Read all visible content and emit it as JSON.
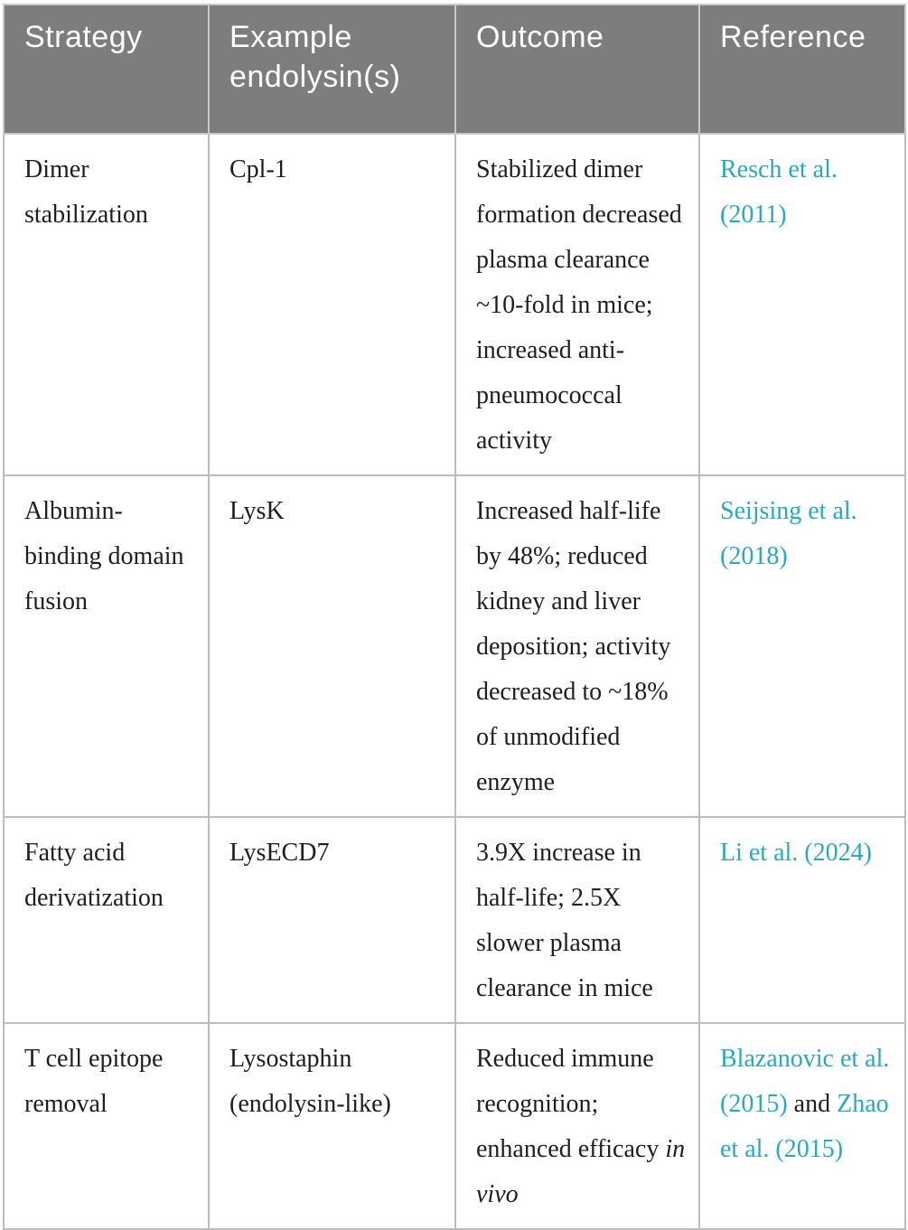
{
  "colors": {
    "header_bg": "#7d7d7d",
    "header_text": "#ffffff",
    "body_text": "#1e1e1e",
    "link": "#27a9bf",
    "border": "#bcbcbc"
  },
  "table": {
    "columns": [
      {
        "label": "Strategy"
      },
      {
        "label": "Example endolysin(s)"
      },
      {
        "label": "Outcome"
      },
      {
        "label": "Reference"
      }
    ],
    "rows": [
      {
        "strategy": "Dimer stabilization",
        "example": "Cpl-1",
        "outcome": [
          {
            "text": "Stabilized dimer formation decreased plasma clearance ~10-fold in mice; increased anti-pneumococcal activity",
            "style": "plain"
          }
        ],
        "reference": [
          {
            "text": "Resch et al. (2011)",
            "style": "link"
          }
        ]
      },
      {
        "strategy": "Albumin-binding domain fusion",
        "example": "LysK",
        "outcome": [
          {
            "text": "Increased half-life by 48%; reduced kidney and liver deposition; activity decreased to ~18% of unmodified enzyme",
            "style": "plain"
          }
        ],
        "reference": [
          {
            "text": "Seijsing et al. (2018)",
            "style": "link"
          }
        ]
      },
      {
        "strategy": "Fatty acid derivatization",
        "example": "LysECD7",
        "outcome": [
          {
            "text": "3.9X increase in half-life; 2.5X slower plasma clearance in mice",
            "style": "plain"
          }
        ],
        "reference": [
          {
            "text": "Li et al. (2024)",
            "style": "link"
          }
        ]
      },
      {
        "strategy": "T cell epitope removal",
        "example": "Lysostaphin (endolysin-like)",
        "outcome": [
          {
            "text": "Reduced immune recognition; enhanced efficacy ",
            "style": "plain"
          },
          {
            "text": "in vivo",
            "style": "italic"
          }
        ],
        "reference": [
          {
            "text": "Blazanovic et al. (2015)",
            "style": "link"
          },
          {
            "text": " and ",
            "style": "plain"
          },
          {
            "text": "Zhao et al. (2015)",
            "style": "link"
          }
        ]
      }
    ]
  }
}
